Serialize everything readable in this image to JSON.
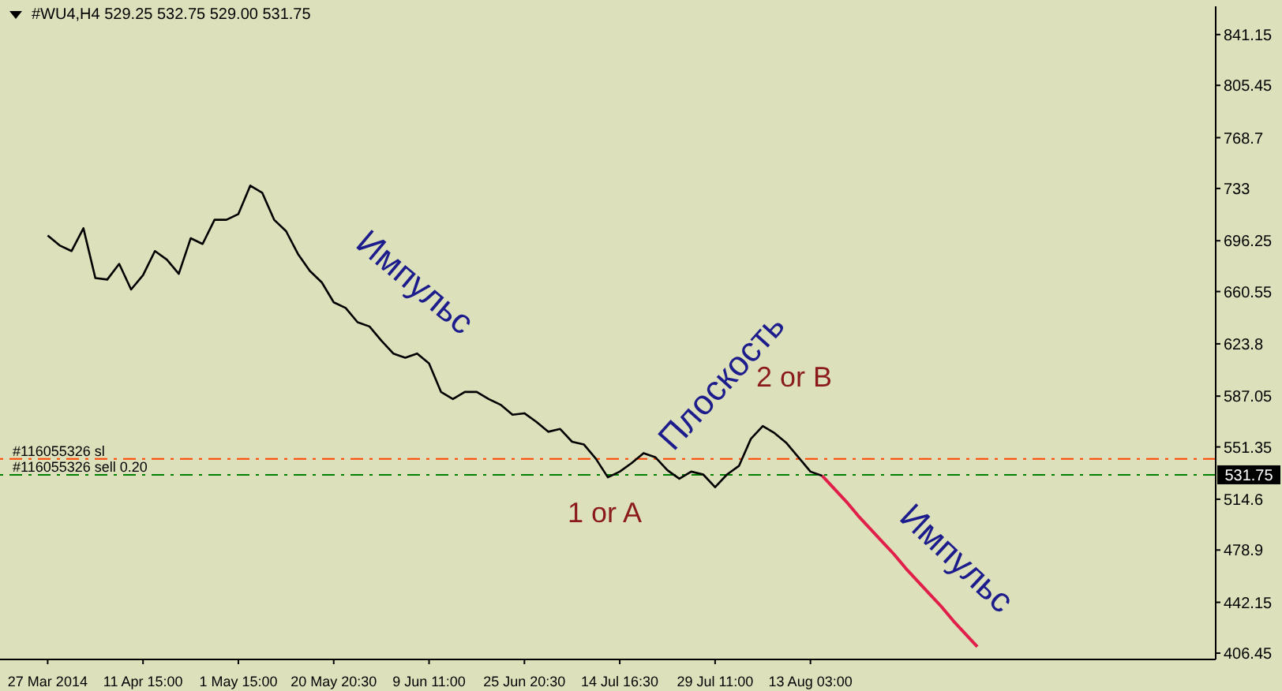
{
  "chart_data": {
    "type": "line",
    "title": "#WU4,H4  529.25 532.75 529.00 531.75",
    "categories": [
      "27 Mar 2014",
      null,
      null,
      null,
      null,
      null,
      null,
      null,
      "11 Apr 15:00",
      null,
      null,
      null,
      null,
      null,
      null,
      null,
      "1 May 15:00",
      null,
      null,
      null,
      null,
      null,
      null,
      null,
      "20 May 20:30",
      null,
      null,
      null,
      null,
      null,
      null,
      null,
      "9 Jun 11:00",
      null,
      null,
      null,
      null,
      null,
      null,
      null,
      "25 Jun 20:30",
      null,
      null,
      null,
      null,
      null,
      null,
      null,
      "14 Jul 16:30",
      null,
      null,
      null,
      null,
      null,
      null,
      null,
      "29 Jul 11:00",
      null,
      null,
      null,
      null,
      null,
      null,
      null,
      "13 Aug 03:00",
      null,
      null,
      null,
      null,
      null,
      null,
      null,
      null,
      null,
      null,
      null,
      null,
      null,
      null,
      null,
      null,
      null,
      null,
      null,
      null,
      null,
      null,
      null,
      null,
      null,
      null,
      null,
      null,
      null,
      null,
      null,
      null,
      null
    ],
    "ylim": [
      402,
      861
    ],
    "yticks": [
      406.45,
      442.15,
      478.9,
      514.6,
      551.35,
      587.05,
      623.8,
      660.55,
      696.25,
      733.0,
      768.7,
      805.45,
      841.15
    ],
    "grid": false,
    "marker": "none",
    "line_style": "solid",
    "series": [
      {
        "color": "#000000",
        "values": [
          700,
          693,
          689,
          705,
          670,
          669,
          680,
          662,
          672,
          689,
          683,
          673,
          698,
          694,
          711,
          711,
          715,
          735,
          730,
          711,
          703,
          687,
          675,
          667,
          653,
          649,
          639,
          636,
          626,
          617,
          614,
          617,
          610,
          590,
          585,
          590,
          590,
          585,
          581,
          574,
          575,
          569,
          562,
          564,
          555,
          553,
          543,
          530,
          534,
          540,
          547,
          544,
          535,
          529,
          534,
          532,
          523,
          532,
          538,
          557,
          566,
          561,
          554,
          544,
          534,
          531,
          null,
          null,
          null,
          null,
          null,
          null,
          null,
          null,
          null,
          null,
          null,
          null,
          null,
          null,
          null,
          null,
          null,
          null,
          null,
          null,
          null,
          null,
          null,
          null,
          null,
          null,
          null,
          null,
          null,
          null,
          null,
          null
        ]
      },
      {
        "color": "#e0204a",
        "values": [
          null,
          null,
          null,
          null,
          null,
          null,
          null,
          null,
          null,
          null,
          null,
          null,
          null,
          null,
          null,
          null,
          null,
          null,
          null,
          null,
          null,
          null,
          null,
          null,
          null,
          null,
          null,
          null,
          null,
          null,
          null,
          null,
          null,
          null,
          null,
          null,
          null,
          null,
          null,
          null,
          null,
          null,
          null,
          null,
          null,
          null,
          null,
          null,
          null,
          null,
          null,
          null,
          null,
          null,
          null,
          null,
          null,
          null,
          null,
          null,
          null,
          null,
          null,
          null,
          null,
          531,
          522,
          513,
          503,
          494,
          485,
          476,
          466,
          457,
          448,
          439,
          429,
          420,
          411,
          null,
          null,
          null,
          null,
          null,
          null,
          null,
          null,
          null,
          null,
          null,
          null,
          null,
          null,
          null,
          null,
          null,
          null,
          null
        ]
      }
    ],
    "ref_lines": [
      {
        "axis": "y",
        "value": 543,
        "label": "#116055326 sl",
        "color": "#ff4500",
        "line_style": "dashdot"
      },
      {
        "axis": "y",
        "value": 531.75,
        "label": "#116055326 sell 0.20",
        "color": "#008000",
        "line_style": "dashdot"
      }
    ],
    "annotations": [
      "Импульс",
      "Плоскость",
      "2 or B",
      "1 or A",
      "Импульс",
      "531.75"
    ]
  }
}
